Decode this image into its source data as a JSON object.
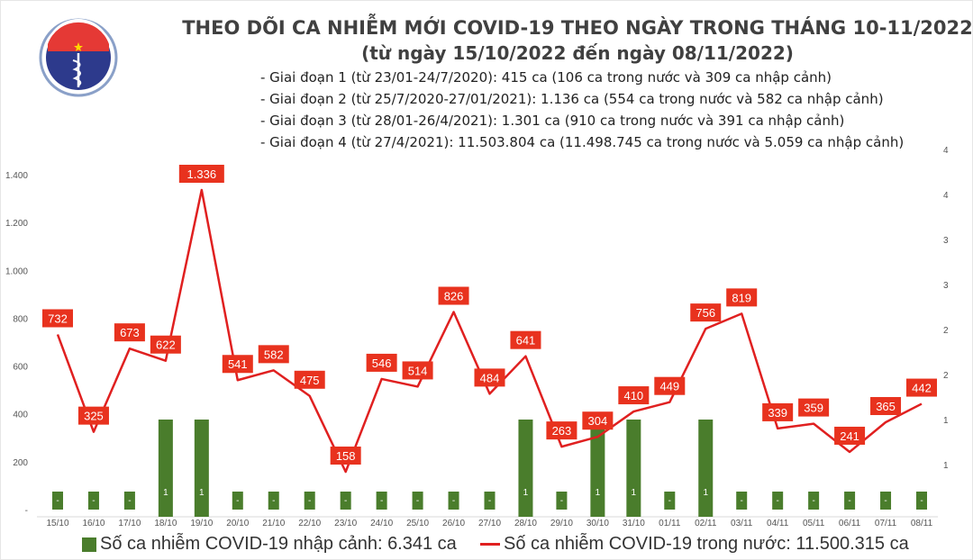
{
  "header": {
    "title": "THEO DÕI CA NHIỄM MỚI COVID-19 THEO NGÀY TRONG THÁNG 10-11/2022",
    "subtitle": "(từ ngày 15/10/2022 đến ngày 08/11/2022)",
    "notes": [
      "- Giai đoạn 1 (từ 23/01-24/7/2020): 415 ca (106 ca trong nước và 309 ca nhập cảnh)",
      "- Giai đoạn 2 (từ 25/7/2020-27/01/2021): 1.136 ca (554 ca trong nước và 582 ca nhập cảnh)",
      "- Giai đoạn 3 (từ 28/01-26/4/2021): 1.301 ca (910 ca trong nước và 391 ca nhập cảnh)",
      "- Giai đoạn 4 (từ 27/4/2021): 11.503.804 ca (11.498.745 ca trong nước và 5.059 ca nhập cảnh)"
    ],
    "logo_text": [
      "BỘ Y TẾ",
      "MINISTRY OF HEALTH"
    ]
  },
  "chart_data": {
    "type": "bar+line",
    "categories": [
      "15/10",
      "16/10",
      "17/10",
      "18/10",
      "19/10",
      "20/10",
      "21/10",
      "22/10",
      "23/10",
      "24/10",
      "25/10",
      "26/10",
      "27/10",
      "28/10",
      "29/10",
      "30/10",
      "31/10",
      "01/11",
      "02/11",
      "03/11",
      "04/11",
      "05/11",
      "06/11",
      "07/11",
      "08/11"
    ],
    "series": [
      {
        "name": "Số ca nhiễm COVID-19 nhập cảnh: 6.341 ca",
        "type": "bar",
        "axis": "right",
        "color": "#4a7d2c",
        "values": [
          0,
          0,
          0,
          1,
          1,
          0,
          0,
          0,
          0,
          0,
          0,
          0,
          0,
          1,
          0,
          1,
          1,
          0,
          1,
          0,
          0,
          0,
          0,
          0,
          0
        ]
      },
      {
        "name": "Số ca nhiễm COVID-19 trong nước: 11.500.315 ca",
        "type": "line",
        "axis": "left",
        "color": "#e02020",
        "values": [
          732,
          325,
          673,
          622,
          1336,
          541,
          582,
          475,
          158,
          546,
          514,
          826,
          484,
          641,
          263,
          304,
          410,
          449,
          756,
          819,
          339,
          359,
          241,
          365,
          442
        ]
      }
    ],
    "left_axis": {
      "ylim": [
        0,
        1400
      ],
      "ticks": [
        "-",
        "200",
        "400",
        "600",
        "800",
        "1.000",
        "1.200",
        "1.400"
      ]
    },
    "right_axis": {
      "ylim": [
        0,
        4
      ],
      "ticks": [
        "1",
        "1",
        "2",
        "2",
        "3",
        "3",
        "4",
        "4"
      ]
    },
    "zero_bar_label": "-",
    "grid": false,
    "legend": "bottom"
  }
}
